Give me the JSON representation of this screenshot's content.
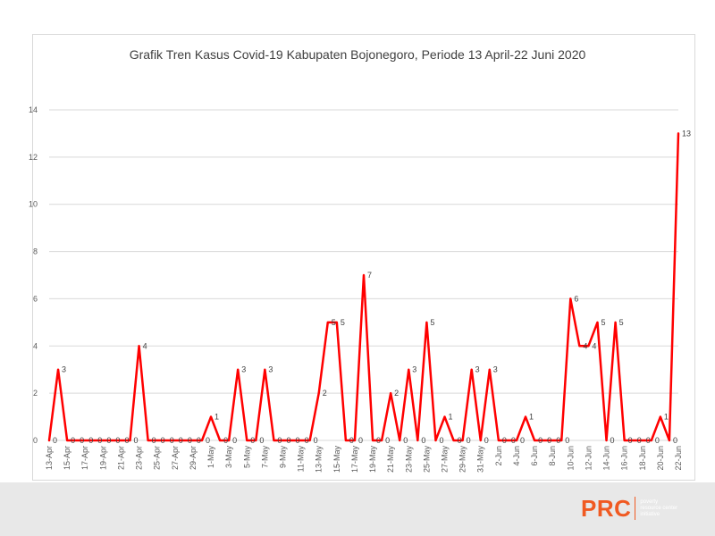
{
  "chart_data": {
    "type": "line",
    "title": "Grafik Tren Kasus Covid-19 Kabupaten Bojonegoro, Periode 13 April-22 Juni 2020",
    "xlabel": "",
    "ylabel": "",
    "ylim": [
      0,
      14
    ],
    "yticks": [
      0,
      2,
      4,
      6,
      8,
      10,
      12,
      14
    ],
    "grid": true,
    "legend": "none",
    "line_color": "#ff0000",
    "x": [
      "13-Apr",
      "14-Apr",
      "15-Apr",
      "16-Apr",
      "17-Apr",
      "18-Apr",
      "19-Apr",
      "20-Apr",
      "21-Apr",
      "22-Apr",
      "23-Apr",
      "24-Apr",
      "25-Apr",
      "26-Apr",
      "27-Apr",
      "28-Apr",
      "29-Apr",
      "30-Apr",
      "1-May",
      "2-May",
      "3-May",
      "4-May",
      "5-May",
      "6-May",
      "7-May",
      "8-May",
      "9-May",
      "10-May",
      "11-May",
      "12-May",
      "13-May",
      "14-May",
      "15-May",
      "16-May",
      "17-May",
      "18-May",
      "19-May",
      "20-May",
      "21-May",
      "22-May",
      "23-May",
      "24-May",
      "25-May",
      "26-May",
      "27-May",
      "28-May",
      "29-May",
      "30-May",
      "31-May",
      "1-Jun",
      "2-Jun",
      "3-Jun",
      "4-Jun",
      "5-Jun",
      "6-Jun",
      "7-Jun",
      "8-Jun",
      "9-Jun",
      "10-Jun",
      "11-Jun",
      "12-Jun",
      "13-Jun",
      "14-Jun",
      "15-Jun",
      "16-Jun",
      "17-Jun",
      "18-Jun",
      "19-Jun",
      "20-Jun",
      "21-Jun",
      "22-Jun"
    ],
    "tick_labels": [
      "13-Apr",
      "15-Apr",
      "17-Apr",
      "19-Apr",
      "21-Apr",
      "23-Apr",
      "25-Apr",
      "27-Apr",
      "29-Apr",
      "1-May",
      "3-May",
      "5-May",
      "7-May",
      "9-May",
      "11-May",
      "13-May",
      "15-May",
      "17-May",
      "19-May",
      "21-May",
      "23-May",
      "25-May",
      "27-May",
      "29-May",
      "31-May",
      "2-Jun",
      "4-Jun",
      "6-Jun",
      "8-Jun",
      "10-Jun",
      "12-Jun",
      "14-Jun",
      "16-Jun",
      "18-Jun",
      "20-Jun",
      "22-Jun"
    ],
    "values": [
      0,
      3,
      0,
      0,
      0,
      0,
      0,
      0,
      0,
      0,
      4,
      0,
      0,
      0,
      0,
      0,
      0,
      0,
      1,
      0,
      0,
      3,
      0,
      0,
      3,
      0,
      0,
      0,
      0,
      0,
      2,
      5,
      5,
      0,
      0,
      7,
      0,
      0,
      2,
      0,
      3,
      0,
      5,
      0,
      1,
      0,
      0,
      3,
      0,
      3,
      0,
      0,
      0,
      1,
      0,
      0,
      0,
      0,
      6,
      4,
      4,
      5,
      0,
      5,
      0,
      0,
      0,
      0,
      1,
      0,
      13
    ]
  },
  "logo": {
    "mark": "PRC",
    "tagline": [
      "poverty",
      "resource center",
      "initiative"
    ]
  }
}
